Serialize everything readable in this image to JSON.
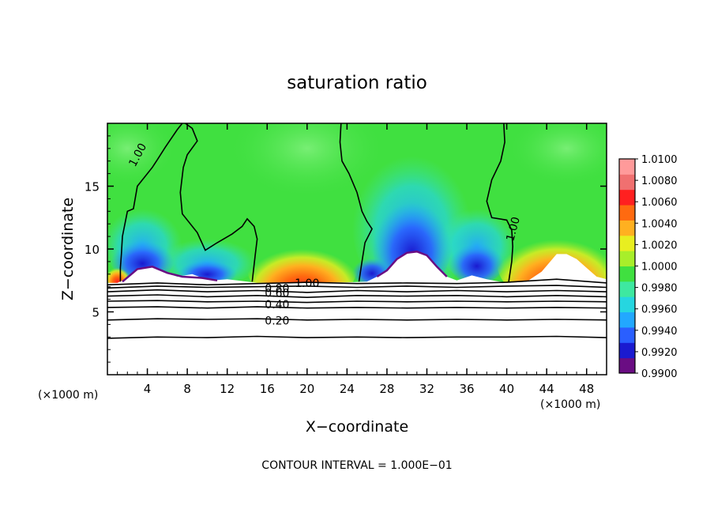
{
  "chart_data": {
    "type": "heatmap",
    "title": "saturation ratio",
    "xlabel": "X−coordinate",
    "ylabel": "Z−coordinate",
    "x_unit_left": "(×1000 m)",
    "x_unit_right": "(×1000 m)",
    "xlim": [
      0,
      50
    ],
    "ylim": [
      0,
      20
    ],
    "x_ticks": [
      4,
      8,
      12,
      16,
      20,
      24,
      28,
      32,
      36,
      40,
      44,
      48
    ],
    "x_tick_labels": [
      "4",
      "8",
      "12",
      "16",
      "20",
      "24",
      "28",
      "32",
      "36",
      "40",
      "44",
      "48"
    ],
    "y_ticks": [
      5,
      10,
      15
    ],
    "y_tick_labels": [
      "5",
      "10",
      "15"
    ],
    "colorbar": {
      "range": [
        0.99,
        1.01
      ],
      "ticks": [
        1.01,
        1.008,
        1.006,
        1.004,
        1.002,
        1.0,
        0.998,
        0.996,
        0.994,
        0.992,
        0.99
      ],
      "tick_labels": [
        "1.0100",
        "1.0080",
        "1.0060",
        "1.0040",
        "1.0020",
        "1.0000",
        "0.9980",
        "0.9960",
        "0.9940",
        "0.9920",
        "0.9900"
      ],
      "colors": [
        "#6a0d83",
        "#1a1ad0",
        "#2a5fff",
        "#22a8ff",
        "#26d6e0",
        "#3ee8a0",
        "#40e040",
        "#a8ee2a",
        "#e8ee20",
        "#ffb020",
        "#ff6a10",
        "#ff2020",
        "#f07070",
        "#ff9a9a"
      ]
    },
    "contours": [
      {
        "label": "1.00",
        "at": [
          [
            3.0,
            17.5
          ],
          [
            40.6,
            11.6
          ],
          [
            20.0,
            7.3
          ]
        ]
      },
      {
        "label": "0.80",
        "at": [
          [
            17.0,
            6.9
          ]
        ]
      },
      {
        "label": "0.60",
        "at": [
          [
            17.0,
            6.5
          ]
        ]
      },
      {
        "label": "0.40",
        "at": [
          [
            17.0,
            5.6
          ]
        ]
      },
      {
        "label": "0.20",
        "at": [
          [
            17.0,
            4.3
          ]
        ]
      }
    ],
    "contour_interval_text": "CONTOUR INTERVAL =  1.000E−01"
  }
}
